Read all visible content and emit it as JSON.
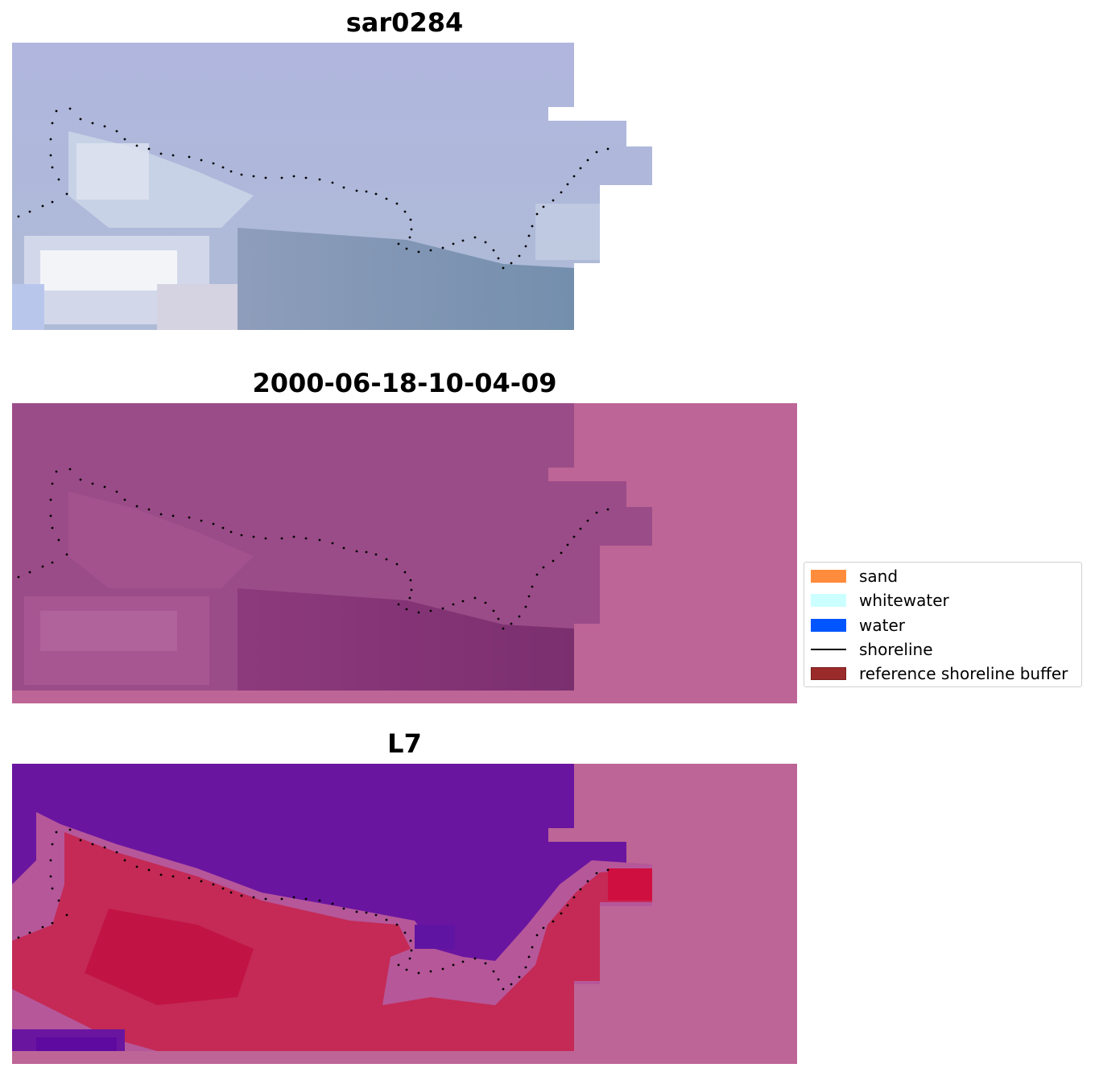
{
  "panels": [
    {
      "title": "sar0284",
      "style": "rgb"
    },
    {
      "title": "2000-06-18-10-04-09",
      "style": "index"
    },
    {
      "title": "L7",
      "style": "classified"
    }
  ],
  "legend": {
    "items": [
      {
        "label": "sand",
        "color": "#ff8c3c",
        "kind": "patch"
      },
      {
        "label": "whitewater",
        "color": "#ccffff",
        "kind": "patch"
      },
      {
        "label": "water",
        "color": "#0055ff",
        "kind": "patch"
      },
      {
        "label": "shoreline",
        "color": "#000000",
        "kind": "line"
      },
      {
        "label": "reference shoreline buffer",
        "color": "#9b2b2b",
        "kind": "patch"
      }
    ]
  },
  "colors": {
    "background_pad": "#bd6596",
    "rgb_sky": "#b4bfdb",
    "index_base": "#9a4c88",
    "water_class": "#6a15a0",
    "land_class": "#c42a55"
  }
}
